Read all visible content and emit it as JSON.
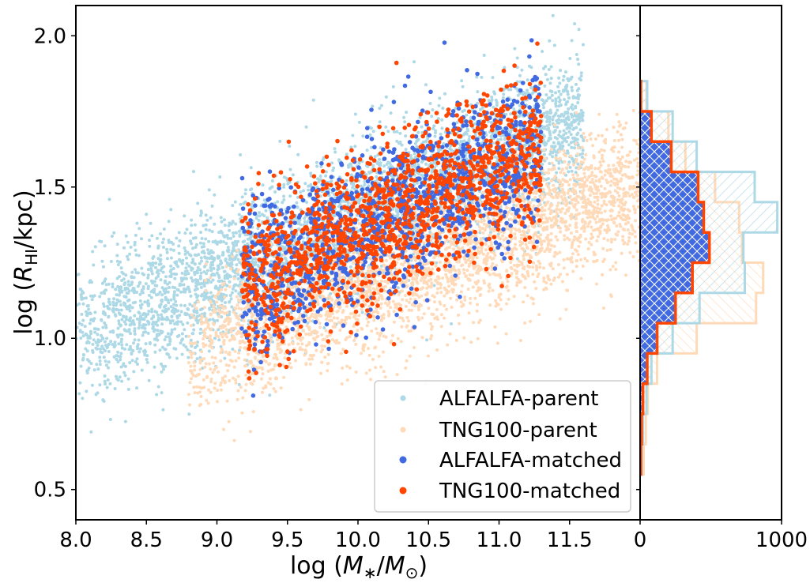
{
  "chart_data": [
    {
      "type": "scatter",
      "xlabel": "log (M∗/M⊙)",
      "ylabel": "log (R_HI/kpc)",
      "xlim": [
        8.0,
        12.0
      ],
      "ylim": [
        0.4,
        2.1
      ],
      "xticks": [
        "8.0",
        "8.5",
        "9.0",
        "9.5",
        "10.0",
        "10.5",
        "11.0",
        "11.5"
      ],
      "yticks": [
        "0.5",
        "1.0",
        "1.5",
        "2.0"
      ],
      "legend_placement": "lower-right",
      "series": [
        {
          "name": "ALFALFA-parent",
          "color": "#add8e6",
          "point_count": 4200,
          "trend": {
            "x_range": [
              8.0,
              11.6
            ],
            "y_at_x_start": 1.0,
            "y_at_x_end": 1.72
          }
        },
        {
          "name": "TNG100-parent",
          "color": "#ffdab9",
          "point_count": 3200,
          "trend": {
            "x_range": [
              8.8,
              12.0
            ],
            "y_at_x_start": 0.95,
            "y_at_x_end": 1.5
          }
        },
        {
          "name": "ALFALFA-matched",
          "color": "#4169e1",
          "point_count": 1400,
          "trend": {
            "x_range": [
              8.8,
              11.3
            ],
            "y_at_x_start": 1.08,
            "y_at_x_end": 1.64
          }
        },
        {
          "name": "TNG100-matched",
          "color": "#ff4500",
          "point_count": 1400,
          "trend": {
            "x_range": [
              8.8,
              11.3
            ],
            "y_at_x_start": 1.08,
            "y_at_x_end": 1.64
          }
        }
      ]
    },
    {
      "type": "bar",
      "orientation": "horizontal",
      "xlim": [
        0,
        1000
      ],
      "ylim": [
        0.4,
        2.1
      ],
      "xticks": [
        "0",
        "1000"
      ],
      "bin_edges": [
        0.55,
        0.65,
        0.75,
        0.85,
        0.95,
        1.05,
        1.15,
        1.25,
        1.35,
        1.45,
        1.55,
        1.65,
        1.75,
        1.85
      ],
      "series": [
        {
          "name": "ALFALFA-parent",
          "color": "#add8e6",
          "values": [
            10,
            20,
            45,
            80,
            230,
            420,
            740,
            730,
            970,
            810,
            400,
            230,
            50
          ]
        },
        {
          "name": "TNG100-parent",
          "color": "#ffdab9",
          "values": [
            25,
            40,
            55,
            120,
            400,
            820,
            870,
            720,
            700,
            530,
            320,
            200,
            45
          ]
        },
        {
          "name": "ALFALFA-matched",
          "color": "#4169e1",
          "values": [
            5,
            10,
            20,
            50,
            120,
            250,
            370,
            490,
            450,
            410,
            220,
            80,
            5
          ]
        },
        {
          "name": "TNG100-matched",
          "color": "#ff4500",
          "values": [
            5,
            10,
            20,
            50,
            120,
            250,
            370,
            490,
            450,
            410,
            220,
            80,
            5
          ]
        }
      ]
    }
  ]
}
